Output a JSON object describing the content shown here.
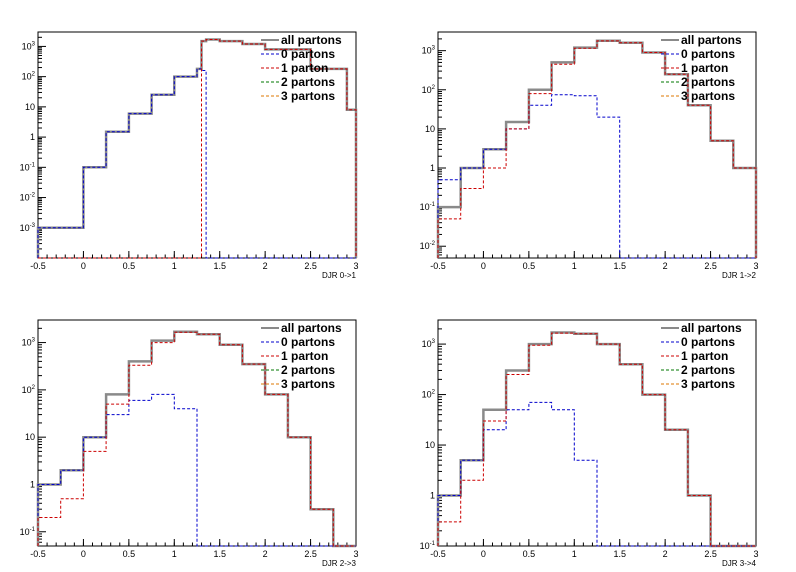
{
  "colors": {
    "all_partons": "#8a8a8a",
    "0_partons": "#0000cc",
    "1_parton": "#cc0000",
    "2_partons": "#007700",
    "3_partons": "#dd7700"
  },
  "legend": [
    {
      "key": "all_partons",
      "label": "all partons"
    },
    {
      "key": "0_partons",
      "label": "0 partons"
    },
    {
      "key": "1_parton",
      "label": "1 parton"
    },
    {
      "key": "2_partons",
      "label": "2 partons"
    },
    {
      "key": "3_partons",
      "label": "3 partons"
    }
  ],
  "chart_data": [
    {
      "type": "line",
      "title": "",
      "xlabel": "DJR 0->1",
      "ylabel": "",
      "xlim": [
        -0.5,
        3
      ],
      "ylim": [
        0.0001,
        3000
      ],
      "yscale": "log",
      "grid": false,
      "legend_position": "top-right",
      "x_ticks": [
        -0.5,
        0,
        0.5,
        1,
        1.5,
        2,
        2.5,
        3
      ],
      "x_tick_labels": [
        "-0.5",
        "0",
        "0.5",
        "1",
        "1.5",
        "2",
        "2.5",
        "3"
      ],
      "y_tick_labels": [
        "10^-3",
        "10^-2",
        "10^-1",
        "1",
        "10",
        "10^2",
        "10^3"
      ],
      "bin_edges": [
        -0.5,
        0,
        0.25,
        0.5,
        0.75,
        1,
        1.25,
        1.3,
        1.35,
        1.5,
        1.75,
        2,
        2.5,
        2.9,
        3
      ],
      "series": [
        {
          "key": "all_partons",
          "values": [
            0.001,
            0.1,
            1.5,
            6,
            25,
            100,
            180,
            1500,
            1700,
            1500,
            1200,
            800,
            180,
            8
          ]
        },
        {
          "key": "0_partons",
          "values": [
            0.001,
            0.1,
            1.5,
            6,
            25,
            100,
            180,
            160,
            0.0001,
            0.0001,
            0.0001,
            0.0001,
            0.0001,
            0.0001
          ]
        },
        {
          "key": "1_parton",
          "values": [
            0.0001,
            0.0001,
            0.0001,
            0.0001,
            0.0001,
            0.0001,
            0.0001,
            1500,
            1700,
            1500,
            1200,
            800,
            180,
            8
          ]
        }
      ]
    },
    {
      "type": "line",
      "title": "",
      "xlabel": "DJR 1->2",
      "ylabel": "",
      "xlim": [
        -0.5,
        3
      ],
      "ylim": [
        0.005,
        3000
      ],
      "yscale": "log",
      "grid": false,
      "legend_position": "top-right",
      "x_ticks": [
        -0.5,
        0,
        0.5,
        1,
        1.5,
        2,
        2.5,
        3
      ],
      "x_tick_labels": [
        "-0.5",
        "0",
        "0.5",
        "1",
        "1.5",
        "2",
        "2.5",
        "3"
      ],
      "y_tick_labels": [
        "10^-2",
        "10^-1",
        "1",
        "10",
        "10^2",
        "10^3"
      ],
      "bin_edges": [
        -0.5,
        -0.25,
        0,
        0.25,
        0.5,
        0.75,
        1,
        1.25,
        1.5,
        1.75,
        2,
        2.25,
        2.5,
        2.75,
        3
      ],
      "series": [
        {
          "key": "all_partons",
          "values": [
            0.1,
            1,
            3,
            15,
            100,
            500,
            1200,
            1800,
            1600,
            900,
            250,
            40,
            5,
            1
          ]
        },
        {
          "key": "0_partons",
          "values": [
            0.5,
            1,
            3,
            10,
            40,
            75,
            70,
            20,
            0.005,
            0.005,
            0.005,
            0.005,
            0.005,
            0.005
          ]
        },
        {
          "key": "1_parton",
          "values": [
            0.05,
            0.3,
            1,
            10,
            80,
            450,
            1150,
            1780,
            1600,
            900,
            250,
            40,
            5,
            1
          ]
        }
      ]
    },
    {
      "type": "line",
      "title": "",
      "xlabel": "DJR 2->3",
      "ylabel": "",
      "xlim": [
        -0.5,
        3
      ],
      "ylim": [
        0.05,
        3000
      ],
      "yscale": "log",
      "grid": false,
      "legend_position": "top-right",
      "x_ticks": [
        -0.5,
        0,
        0.5,
        1,
        1.5,
        2,
        2.5,
        3
      ],
      "x_tick_labels": [
        "-0.5",
        "0",
        "0.5",
        "1",
        "1.5",
        "2",
        "2.5",
        "3"
      ],
      "y_tick_labels": [
        "10^-1",
        "1",
        "10",
        "10^2",
        "10^3"
      ],
      "bin_edges": [
        -0.5,
        -0.25,
        0,
        0.25,
        0.5,
        0.75,
        1,
        1.25,
        1.5,
        1.75,
        2,
        2.25,
        2.5,
        2.75,
        3
      ],
      "series": [
        {
          "key": "all_partons",
          "values": [
            1,
            2,
            10,
            80,
            400,
            1100,
            1700,
            1500,
            900,
            350,
            80,
            10,
            0.3,
            0.05
          ]
        },
        {
          "key": "0_partons",
          "values": [
            1,
            2,
            10,
            30,
            60,
            80,
            40,
            0.05,
            0.05,
            0.05,
            0.05,
            0.05,
            0.05,
            0.05
          ]
        },
        {
          "key": "1_parton",
          "values": [
            0.2,
            0.5,
            5,
            50,
            330,
            1000,
            1650,
            1500,
            900,
            350,
            80,
            10,
            0.3,
            0.05
          ]
        }
      ]
    },
    {
      "type": "line",
      "title": "",
      "xlabel": "DJR 3->4",
      "ylabel": "",
      "xlim": [
        -0.5,
        3
      ],
      "ylim": [
        0.1,
        3000
      ],
      "yscale": "log",
      "grid": false,
      "legend_position": "top-right",
      "x_ticks": [
        -0.5,
        0,
        0.5,
        1,
        1.5,
        2,
        2.5,
        3
      ],
      "x_tick_labels": [
        "-0.5",
        "0",
        "0.5",
        "1",
        "1.5",
        "2",
        "2.5",
        "3"
      ],
      "y_tick_labels": [
        "10^-1",
        "1",
        "10",
        "10^2",
        "10^3"
      ],
      "bin_edges": [
        -0.5,
        -0.25,
        0,
        0.25,
        0.5,
        0.75,
        1,
        1.25,
        1.5,
        1.75,
        2,
        2.25,
        2.5,
        2.75,
        3
      ],
      "series": [
        {
          "key": "all_partons",
          "values": [
            1,
            5,
            50,
            300,
            1000,
            1700,
            1600,
            1000,
            400,
            100,
            20,
            1,
            0.1,
            0.1
          ]
        },
        {
          "key": "0_partons",
          "values": [
            1,
            5,
            20,
            50,
            70,
            50,
            5,
            0.1,
            0.1,
            0.1,
            0.1,
            0.1,
            0.1,
            0.1
          ]
        },
        {
          "key": "1_parton",
          "values": [
            0.3,
            2,
            30,
            250,
            950,
            1650,
            1600,
            1000,
            400,
            100,
            20,
            1,
            0.1,
            0.1
          ]
        }
      ]
    }
  ]
}
